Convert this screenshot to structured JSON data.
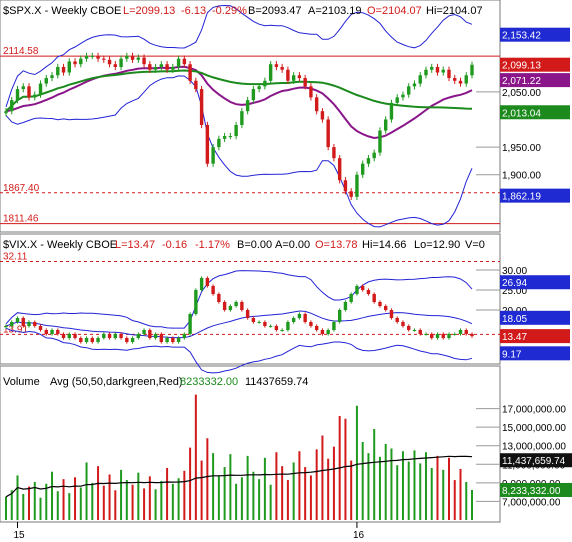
{
  "colors": {
    "up": "#1f9a1f",
    "down": "#d21a1a",
    "band": "#2323d6",
    "ema": "#8a168a",
    "sma": "#1c8a1c",
    "ref": "#d21a1a",
    "black": "#000000",
    "tag_blue": "#1f2ad2",
    "tag_red": "#d21a1a",
    "tag_purple": "#8a168a",
    "tag_green": "#1c8a1c",
    "tag_black": "#111111"
  },
  "chart_data": [
    {
      "type": "candlestick",
      "title": "$SPX.X - Weekly  CBOE",
      "quote": {
        "L_label": "L=2099.13",
        "change": "-6.13",
        "pct": "-0.29%",
        "B": "B=2093.47",
        "A": "A=2103.19",
        "O": "O=2104.07",
        "Hi": "Hi=2104.07"
      },
      "ylim": [
        1800,
        2180
      ],
      "yticks": [
        1900,
        1950,
        2050
      ],
      "ytick_labels": [
        "1,900.00",
        "1,950.00",
        "2,050.00"
      ],
      "ref_lines": [
        {
          "value": 2114.58,
          "label": "2114.58",
          "style": "solid"
        },
        {
          "value": 1867.4,
          "label": "1867.40",
          "style": "dashed"
        },
        {
          "value": 1811.46,
          "label": "1811.46",
          "style": "solid"
        }
      ],
      "tags": [
        {
          "value": 2153.42,
          "label": "2,153.42",
          "color": "tag_blue"
        },
        {
          "value": 2099.13,
          "label": "2,099.13",
          "color": "tag_red"
        },
        {
          "value": 2071.22,
          "label": "2,071.22",
          "color": "tag_purple"
        },
        {
          "value": 2013.04,
          "label": "2,013.04",
          "color": "tag_green"
        },
        {
          "value": 1862.19,
          "label": "1,862.19",
          "color": "tag_blue"
        }
      ],
      "close": [
        2015,
        2035,
        2055,
        2060,
        2040,
        2045,
        2065,
        2075,
        2080,
        2095,
        2085,
        2105,
        2100,
        2110,
        2115,
        2115,
        2110,
        2108,
        2100,
        2095,
        2110,
        2115,
        2108,
        2112,
        2100,
        2090,
        2095,
        2100,
        2090,
        2095,
        2110,
        2100,
        2070,
        2055,
        1990,
        1920,
        1950,
        1965,
        1970,
        1970,
        1990,
        2015,
        2035,
        2055,
        2060,
        2070,
        2100,
        2095,
        2090,
        2070,
        2080,
        2075,
        2060,
        2040,
        2015,
        2000,
        1950,
        1930,
        1890,
        1870,
        1860,
        1900,
        1920,
        1930,
        1940,
        1980,
        2000,
        2030,
        2040,
        2045,
        2060,
        2065,
        2080,
        2090,
        2095,
        2085,
        2090,
        2075,
        2070,
        2065,
        2080,
        2099
      ]
    },
    {
      "type": "candlestick",
      "title": "$VIX.X - Weekly  CBOE",
      "quote": {
        "L_label": "L=13.47",
        "change": "-0.16",
        "pct": "-1.17%",
        "B": "B=0.00",
        "A": "A=0.00",
        "O": "O=13.78",
        "Hi": "Hi=14.66",
        "Lo": "Lo=12.90",
        "V": "V=0"
      },
      "ylim": [
        7,
        34
      ],
      "yticks": [
        30,
        25,
        20
      ],
      "ytick_labels": [
        "30.00",
        "25.00",
        "20.00"
      ],
      "ref_lines": [
        {
          "value": 32.11,
          "label": "32.11",
          "style": "dashed"
        },
        {
          "value": 13.91,
          "label": "13.91",
          "style": "dashed"
        }
      ],
      "tags": [
        {
          "value": 26.94,
          "label": "26.94",
          "color": "tag_blue"
        },
        {
          "value": 18.05,
          "label": "18.05",
          "color": "tag_blue"
        },
        {
          "value": 13.47,
          "label": "13.47",
          "color": "tag_red"
        },
        {
          "value": 9.17,
          "label": "9.17",
          "color": "tag_blue"
        }
      ],
      "close": [
        16,
        17,
        18,
        16,
        17,
        16,
        15,
        14,
        15,
        14,
        13,
        14,
        13,
        12,
        13,
        12,
        13,
        14,
        13,
        14,
        13,
        12,
        13,
        14,
        15,
        13,
        14,
        12,
        13,
        12,
        13,
        14,
        19,
        25,
        28,
        26,
        24,
        22,
        20,
        21,
        22,
        20,
        18,
        17,
        17,
        16,
        16,
        15,
        15,
        17,
        18,
        19,
        17,
        16,
        15,
        14,
        15,
        17,
        20,
        22,
        24,
        26,
        25,
        24,
        22,
        21,
        20,
        18,
        17,
        16,
        15,
        15,
        14,
        14,
        13,
        14,
        13,
        14,
        14,
        15,
        14,
        13.47
      ]
    },
    {
      "type": "bar",
      "title": "Volume",
      "subtitle": "Avg (50,50,darkgreen,Red)",
      "avg_labels": [
        "8233332.00",
        "11437659.74"
      ],
      "ylim": [
        5000000,
        19000000
      ],
      "yticks": [
        17000000,
        15000000,
        13000000,
        11000000,
        9000000,
        7000000
      ],
      "ytick_labels": [
        "17,000,000.00",
        "15,000,000.00",
        "13,000,000.00",
        "11,000,000.00",
        "9,000,000.00",
        "7,000,000.00"
      ],
      "tags": [
        {
          "value": 11437659.74,
          "label": "11,437,659.74",
          "color": "tag_black"
        },
        {
          "value": 8233332.0,
          "label": "8,233,332.00",
          "color": "tag_green"
        }
      ],
      "values": [
        7500000,
        8200000,
        9800000,
        7800000,
        8600000,
        9100000,
        7400000,
        8900000,
        10200000,
        8100000,
        9400000,
        7900000,
        9600000,
        8500000,
        11200000,
        9000000,
        10800000,
        8700000,
        9900000,
        8200000,
        10400000,
        9300000,
        8800000,
        10100000,
        8400000,
        9700000,
        8300000,
        9200000,
        10600000,
        8900000,
        9500000,
        10300000,
        12800000,
        18500000,
        11400000,
        13800000,
        12200000,
        9800000,
        10700000,
        12100000,
        8900000,
        9600000,
        11900000,
        10200000,
        9400000,
        11700000,
        8800000,
        12300000,
        10800000,
        9300000,
        11200000,
        12400000,
        10700000,
        9800000,
        12600000,
        14100000,
        11600000,
        12900000,
        16200000,
        15900000,
        11400000,
        17300000,
        13400000,
        12200000,
        14800000,
        11800000,
        13200000,
        12700000,
        10900000,
        12400000,
        11300000,
        12500000,
        11100000,
        12300000,
        10600000,
        11900000,
        10400000,
        11700000,
        9300000,
        10500000,
        9100000,
        8233332
      ],
      "colors_by_bar": "up_green_down_red"
    }
  ],
  "x_axis": {
    "labels": [
      {
        "index": 2,
        "text": "15"
      },
      {
        "index": 61,
        "text": "16"
      }
    ]
  }
}
